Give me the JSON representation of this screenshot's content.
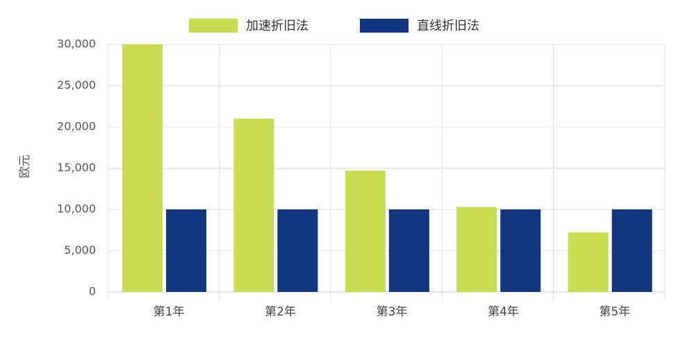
{
  "chart_data": {
    "type": "bar",
    "y_label": "欧元",
    "categories": [
      "第1年",
      "第2年",
      "第3年",
      "第4年",
      "第5年"
    ],
    "series": [
      {
        "name": "加速折旧法",
        "color": "#c8dc50",
        "values": [
          30000,
          21000,
          14700,
          10290,
          7203
        ]
      },
      {
        "name": "直线折旧法",
        "color": "#12357f",
        "values": [
          10000,
          10000,
          10000,
          10000,
          10000
        ]
      }
    ],
    "ylim": [
      0,
      30000
    ],
    "yticks": [
      0,
      {
        "value": 5000,
        "label": "5,000"
      },
      {
        "value": 10000,
        "label": "10,000"
      },
      {
        "value": 15000,
        "label": "15,000"
      },
      {
        "value": 20000,
        "label": "20,000"
      },
      {
        "value": 25000,
        "label": "25,000"
      },
      {
        "value": 30000,
        "label": "30,000"
      }
    ],
    "grid": true,
    "legend": "top"
  }
}
